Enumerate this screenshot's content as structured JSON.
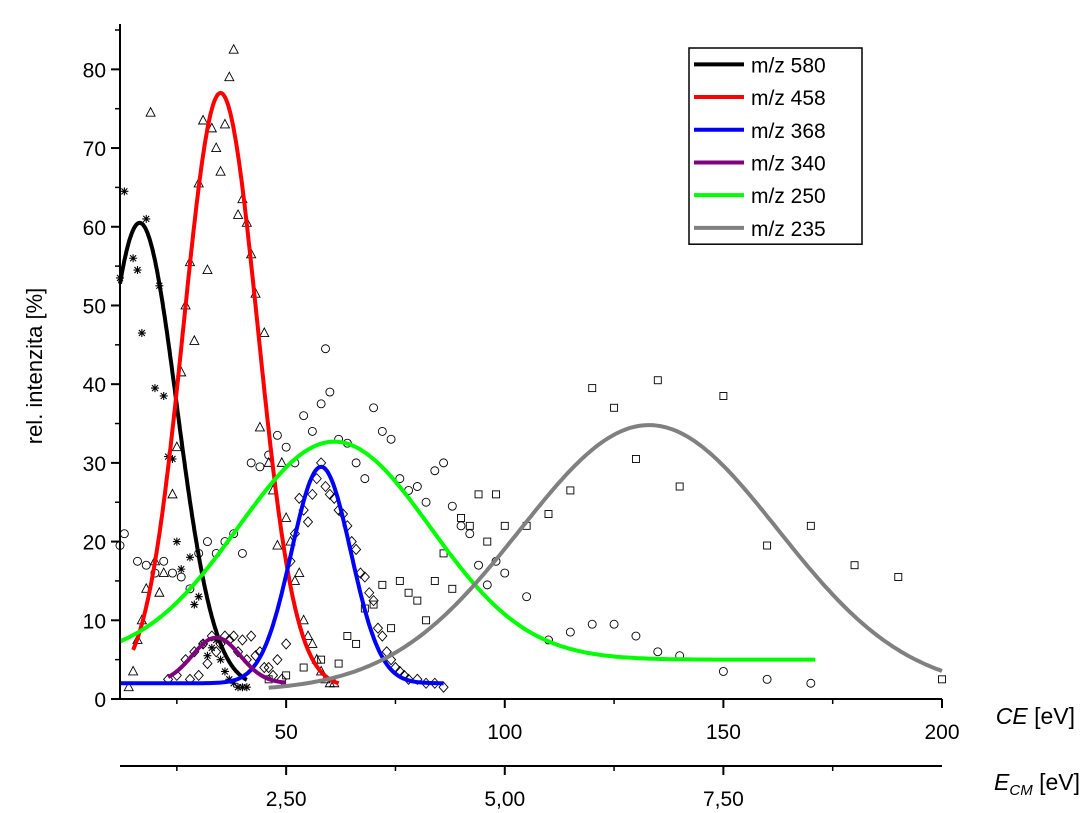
{
  "chart_data": {
    "type": "line",
    "ylabel": "rel. intenzita [%]",
    "xlabel_main": "CE",
    "xlabel_main_unit": " [eV]",
    "xlabel_secondary": "E",
    "xlabel_secondary_sub": "CM",
    "xlabel_secondary_unit": " [eV]",
    "xlim": [
      12,
      200
    ],
    "ylim": [
      0,
      85
    ],
    "x_ticks": [
      50,
      100,
      150,
      200
    ],
    "x_tick_labels": [
      "50",
      "100",
      "150",
      "200"
    ],
    "y_ticks": [
      0,
      10,
      20,
      30,
      40,
      50,
      60,
      70,
      80
    ],
    "y_tick_labels": [
      "0",
      "10",
      "20",
      "30",
      "40",
      "50",
      "60",
      "70",
      "80"
    ],
    "secondary_x_ticks": [
      2.5,
      5.0,
      7.5
    ],
    "secondary_x_tick_labels": [
      "2,50",
      "5,00",
      "7,50"
    ],
    "secondary_scale_ce_per_ecm": 20,
    "grid": false,
    "legend_position": "top-right",
    "series": [
      {
        "name": "m/z 580",
        "color": "#000000",
        "marker": "star",
        "fit": {
          "base": 1.5,
          "amp": 59,
          "center": 16.5,
          "sigma": 8.5,
          "x_range": [
            12,
            41
          ]
        },
        "points": [
          [
            12,
            53.5
          ],
          [
            13,
            64.5
          ],
          [
            15,
            56
          ],
          [
            16,
            54.5
          ],
          [
            17,
            46.5
          ],
          [
            18,
            61
          ],
          [
            20,
            39.5
          ],
          [
            21,
            52.5
          ],
          [
            22,
            38.5
          ],
          [
            23,
            30.8
          ],
          [
            24,
            30.5
          ],
          [
            25,
            20
          ],
          [
            26,
            16.5
          ],
          [
            28,
            18
          ],
          [
            29,
            12
          ],
          [
            30,
            13
          ],
          [
            31,
            7
          ],
          [
            32,
            5.5
          ],
          [
            33,
            6.5
          ],
          [
            34,
            7.5
          ],
          [
            35,
            5
          ],
          [
            36,
            3.5
          ],
          [
            37,
            2.5
          ],
          [
            38,
            2
          ],
          [
            39,
            1.5
          ],
          [
            40,
            1.5
          ],
          [
            41,
            1.5
          ]
        ]
      },
      {
        "name": "m/z 458",
        "color": "#ff0000",
        "marker": "triangle",
        "fit": {
          "base": 1.5,
          "amp": 75.5,
          "center": 35,
          "sigma": 8.5,
          "x_range": [
            15,
            62
          ]
        },
        "points": [
          [
            14,
            1.5
          ],
          [
            15,
            3.5
          ],
          [
            16,
            7.5
          ],
          [
            17,
            10
          ],
          [
            18,
            14
          ],
          [
            19,
            74.5
          ],
          [
            20,
            17.5
          ],
          [
            21,
            13.5
          ],
          [
            22,
            16
          ],
          [
            24,
            26
          ],
          [
            25,
            32
          ],
          [
            26,
            41.5
          ],
          [
            27,
            50
          ],
          [
            28,
            55.5
          ],
          [
            29,
            45.5
          ],
          [
            30,
            65.5
          ],
          [
            31,
            73.5
          ],
          [
            32,
            54.5
          ],
          [
            33,
            72.5
          ],
          [
            34,
            70
          ],
          [
            35,
            67
          ],
          [
            36,
            73
          ],
          [
            37,
            79
          ],
          [
            38,
            82.5
          ],
          [
            39,
            61.5
          ],
          [
            40,
            63.5
          ],
          [
            41,
            60.5
          ],
          [
            42,
            56.5
          ],
          [
            43,
            51.5
          ],
          [
            44,
            34.5
          ],
          [
            45,
            46.5
          ],
          [
            46,
            30
          ],
          [
            47,
            26.5
          ],
          [
            48,
            19.5
          ],
          [
            49,
            30
          ],
          [
            50,
            23
          ],
          [
            51,
            20
          ],
          [
            52,
            15
          ],
          [
            53,
            16
          ],
          [
            54,
            10
          ],
          [
            55,
            8
          ],
          [
            56,
            7
          ],
          [
            57,
            5
          ],
          [
            58,
            3.5
          ],
          [
            59,
            2.5
          ],
          [
            60,
            2
          ],
          [
            61,
            2
          ]
        ]
      },
      {
        "name": "m/z 368",
        "color": "#0000ff",
        "marker": "diamond",
        "fit": {
          "base": 2.0,
          "amp": 27.5,
          "center": 58,
          "sigma": 6.8,
          "x_range": [
            12,
            86
          ]
        },
        "points": [
          [
            28,
            2.5
          ],
          [
            30,
            3
          ],
          [
            32,
            4.5
          ],
          [
            34,
            6
          ],
          [
            36,
            8
          ],
          [
            38,
            8
          ],
          [
            40,
            7.5
          ],
          [
            42,
            8
          ],
          [
            44,
            6
          ],
          [
            46,
            4
          ],
          [
            48,
            5
          ],
          [
            50,
            7
          ],
          [
            51,
            17.5
          ],
          [
            52,
            21
          ],
          [
            53,
            25.5
          ],
          [
            54,
            24
          ],
          [
            55,
            22.5
          ],
          [
            56,
            26
          ],
          [
            57,
            28
          ],
          [
            58,
            30
          ],
          [
            59,
            27
          ],
          [
            60,
            26
          ],
          [
            61,
            25.5
          ],
          [
            62,
            24
          ],
          [
            63,
            23.5
          ],
          [
            64,
            22
          ],
          [
            65,
            20
          ],
          [
            66,
            19
          ],
          [
            67,
            16
          ],
          [
            68,
            15.5
          ],
          [
            69,
            13.5
          ],
          [
            70,
            12.5
          ],
          [
            71,
            9
          ],
          [
            72,
            8
          ],
          [
            73,
            6
          ],
          [
            74,
            5
          ],
          [
            75,
            4
          ],
          [
            76,
            3.5
          ],
          [
            77,
            3
          ],
          [
            78,
            2.5
          ],
          [
            80,
            2.5
          ],
          [
            82,
            2
          ],
          [
            84,
            2
          ],
          [
            86,
            1.5
          ]
        ]
      },
      {
        "name": "m/z 340",
        "color": "#800080",
        "marker": "diamond",
        "fit": {
          "base": 2.0,
          "amp": 5.8,
          "center": 34,
          "sigma": 5.5,
          "x_range": [
            23,
            50
          ]
        },
        "points": [
          [
            23,
            2.5
          ],
          [
            25,
            3
          ],
          [
            27,
            5
          ],
          [
            29,
            6
          ],
          [
            31,
            7
          ],
          [
            33,
            8
          ],
          [
            35,
            7
          ],
          [
            37,
            7.5
          ],
          [
            39,
            6
          ],
          [
            41,
            5
          ],
          [
            43,
            5.5
          ],
          [
            45,
            4
          ],
          [
            47,
            3
          ],
          [
            49,
            2.5
          ]
        ]
      },
      {
        "name": "m/z 250",
        "color": "#00ff00",
        "marker": "circle",
        "fit": {
          "base": 5.0,
          "amp": 27.7,
          "center": 61,
          "sigma": 22,
          "x_range": [
            12,
            171
          ]
        },
        "points": [
          [
            12,
            19.5
          ],
          [
            13,
            21
          ],
          [
            16,
            17.5
          ],
          [
            18,
            17
          ],
          [
            20,
            16
          ],
          [
            22,
            17.5
          ],
          [
            24,
            16
          ],
          [
            26,
            15.5
          ],
          [
            28,
            14
          ],
          [
            30,
            18.5
          ],
          [
            32,
            20
          ],
          [
            34,
            18.5
          ],
          [
            36,
            20
          ],
          [
            38,
            21
          ],
          [
            40,
            18.5
          ],
          [
            42,
            30
          ],
          [
            44,
            29.5
          ],
          [
            46,
            31
          ],
          [
            48,
            33.5
          ],
          [
            50,
            32
          ],
          [
            52,
            30
          ],
          [
            54,
            36
          ],
          [
            56,
            34
          ],
          [
            58,
            37.5
          ],
          [
            59,
            44.5
          ],
          [
            60,
            39
          ],
          [
            62,
            33
          ],
          [
            64,
            32.5
          ],
          [
            66,
            30
          ],
          [
            68,
            28
          ],
          [
            70,
            37
          ],
          [
            72,
            34
          ],
          [
            74,
            33
          ],
          [
            76,
            28
          ],
          [
            78,
            26.5
          ],
          [
            80,
            27
          ],
          [
            82,
            25
          ],
          [
            84,
            29
          ],
          [
            86,
            30
          ],
          [
            88,
            24.5
          ],
          [
            90,
            22
          ],
          [
            92,
            21
          ],
          [
            94,
            17
          ],
          [
            96,
            14.5
          ],
          [
            98,
            17.5
          ],
          [
            100,
            16
          ],
          [
            105,
            13
          ],
          [
            110,
            7.5
          ],
          [
            115,
            8.5
          ],
          [
            120,
            9.5
          ],
          [
            125,
            9.5
          ],
          [
            130,
            8
          ],
          [
            135,
            6
          ],
          [
            140,
            5.5
          ],
          [
            150,
            3.5
          ],
          [
            160,
            2.5
          ],
          [
            170,
            2
          ]
        ]
      },
      {
        "name": "m/z 235",
        "color": "#808080",
        "marker": "square",
        "fit": {
          "base": 1.0,
          "amp": 33.8,
          "center": 133,
          "sigma": 29.5,
          "x_range": [
            46,
            200
          ]
        },
        "points": [
          [
            46,
            2.5
          ],
          [
            50,
            3
          ],
          [
            54,
            4
          ],
          [
            58,
            5
          ],
          [
            62,
            4.5
          ],
          [
            64,
            8
          ],
          [
            66,
            7
          ],
          [
            68,
            11.5
          ],
          [
            70,
            12
          ],
          [
            72,
            14.5
          ],
          [
            74,
            9
          ],
          [
            76,
            15
          ],
          [
            78,
            13.5
          ],
          [
            80,
            12.5
          ],
          [
            82,
            10
          ],
          [
            84,
            15
          ],
          [
            86,
            18.5
          ],
          [
            88,
            14
          ],
          [
            90,
            23
          ],
          [
            92,
            22
          ],
          [
            94,
            26
          ],
          [
            96,
            20
          ],
          [
            98,
            26
          ],
          [
            100,
            22
          ],
          [
            105,
            22
          ],
          [
            110,
            23.5
          ],
          [
            115,
            26.5
          ],
          [
            120,
            39.5
          ],
          [
            125,
            37
          ],
          [
            130,
            30.5
          ],
          [
            135,
            40.5
          ],
          [
            140,
            27
          ],
          [
            150,
            38.5
          ],
          [
            160,
            19.5
          ],
          [
            170,
            22
          ],
          [
            180,
            17
          ],
          [
            190,
            15.5
          ],
          [
            200,
            2.5
          ]
        ]
      }
    ]
  }
}
